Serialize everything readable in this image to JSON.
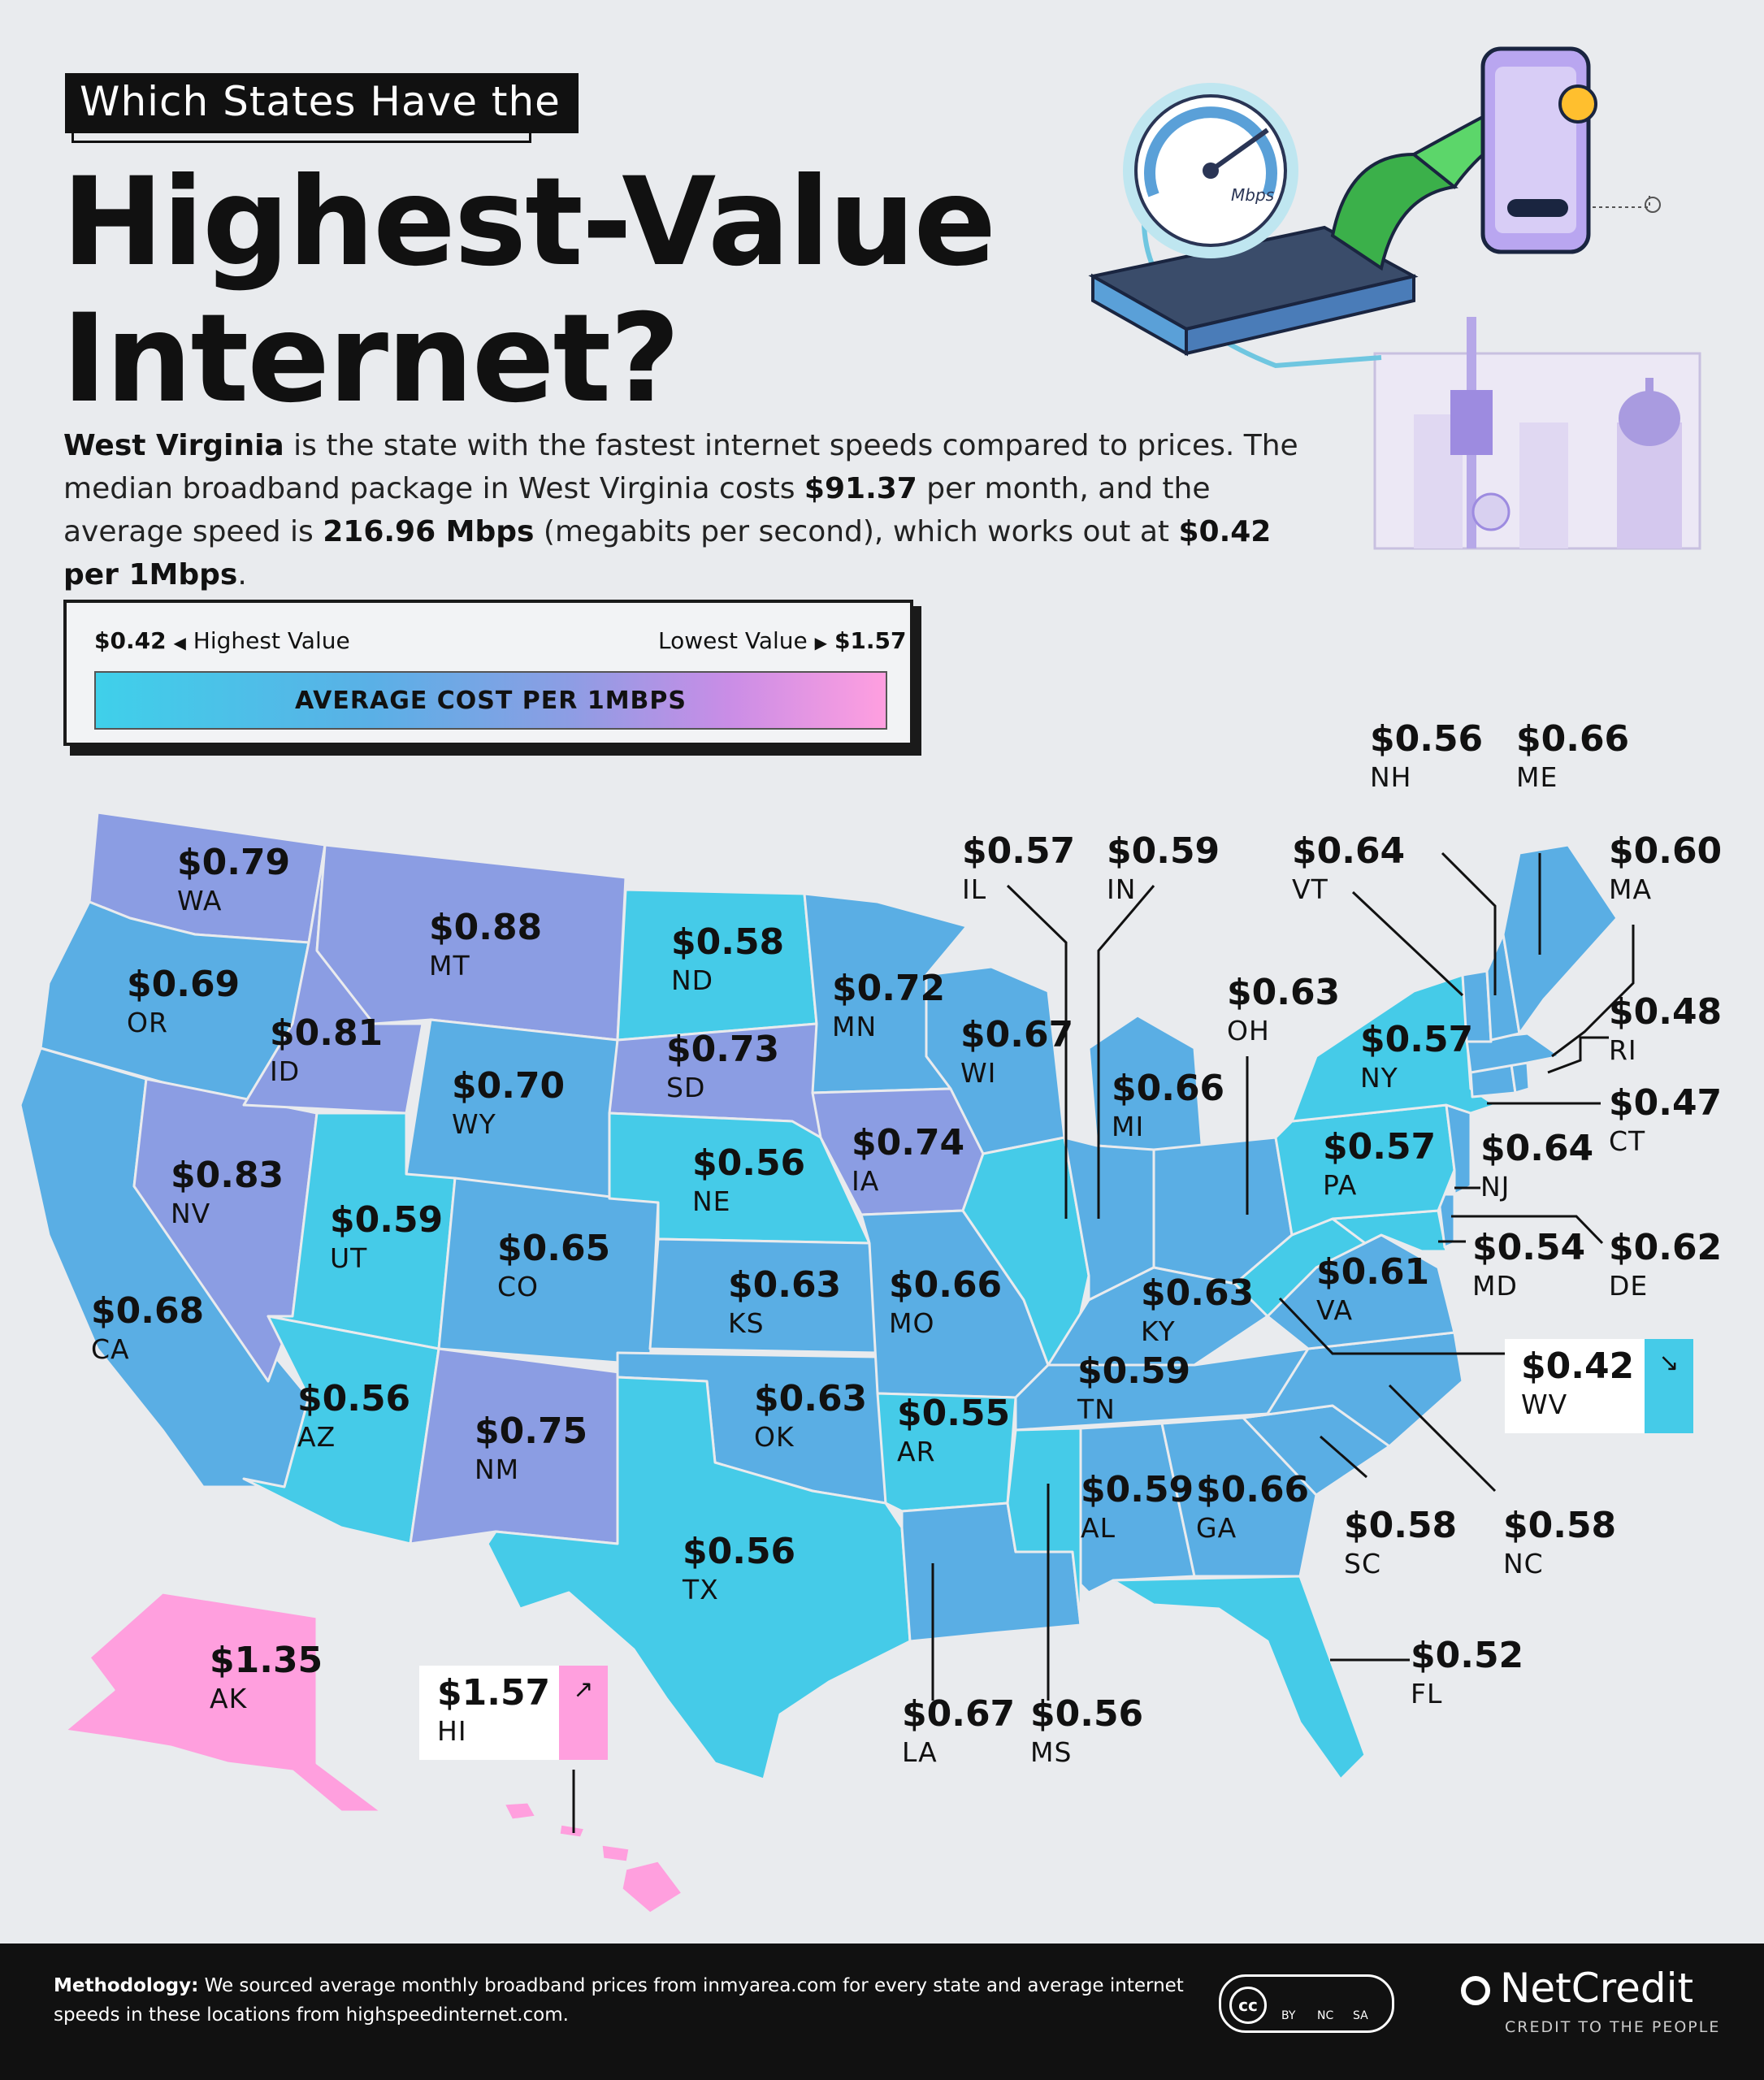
{
  "header": {
    "kicker": "Which States Have the",
    "title_line1": "Highest-Value",
    "title_line2": "Internet?"
  },
  "intro": {
    "state": "West Virginia",
    "t1": " is the state with the fastest internet speeds compared to prices. The median broadband package in West Virginia costs ",
    "cost": "$91.37",
    "t2": " per month, and the average speed is ",
    "speed": "216.96 Mbps",
    "t3": " (megabits per second), which works out at ",
    "per": "$0.42 per 1Mbps",
    "t4": "."
  },
  "illustration": {
    "gauge_label": "Mbps"
  },
  "legend": {
    "min_value": "$0.42",
    "min_label": "Highest Value",
    "max_label": "Lowest Value",
    "max_value": "$1.57",
    "bar_label": "AVERAGE COST PER 1MBPS",
    "color_low": "#3fd0ea",
    "color_high": "#ff9fe0"
  },
  "states": {
    "WA": {
      "abbr": "WA",
      "value": "$0.79"
    },
    "OR": {
      "abbr": "OR",
      "value": "$0.69"
    },
    "CA": {
      "abbr": "CA",
      "value": "$0.68"
    },
    "NV": {
      "abbr": "NV",
      "value": "$0.83"
    },
    "ID": {
      "abbr": "ID",
      "value": "$0.81"
    },
    "MT": {
      "abbr": "MT",
      "value": "$0.88"
    },
    "WY": {
      "abbr": "WY",
      "value": "$0.70"
    },
    "UT": {
      "abbr": "UT",
      "value": "$0.59"
    },
    "AZ": {
      "abbr": "AZ",
      "value": "$0.56"
    },
    "CO": {
      "abbr": "CO",
      "value": "$0.65"
    },
    "NM": {
      "abbr": "NM",
      "value": "$0.75"
    },
    "ND": {
      "abbr": "ND",
      "value": "$0.58"
    },
    "SD": {
      "abbr": "SD",
      "value": "$0.73"
    },
    "NE": {
      "abbr": "NE",
      "value": "$0.56"
    },
    "KS": {
      "abbr": "KS",
      "value": "$0.63"
    },
    "OK": {
      "abbr": "OK",
      "value": "$0.63"
    },
    "TX": {
      "abbr": "TX",
      "value": "$0.56"
    },
    "MN": {
      "abbr": "MN",
      "value": "$0.72"
    },
    "IA": {
      "abbr": "IA",
      "value": "$0.74"
    },
    "MO": {
      "abbr": "MO",
      "value": "$0.66"
    },
    "AR": {
      "abbr": "AR",
      "value": "$0.55"
    },
    "LA": {
      "abbr": "LA",
      "value": "$0.67"
    },
    "WI": {
      "abbr": "WI",
      "value": "$0.67"
    },
    "IL": {
      "abbr": "IL",
      "value": "$0.57"
    },
    "MI": {
      "abbr": "MI",
      "value": "$0.66"
    },
    "IN": {
      "abbr": "IN",
      "value": "$0.59"
    },
    "OH": {
      "abbr": "OH",
      "value": "$0.63"
    },
    "KY": {
      "abbr": "KY",
      "value": "$0.63"
    },
    "TN": {
      "abbr": "TN",
      "value": "$0.59"
    },
    "MS": {
      "abbr": "MS",
      "value": "$0.56"
    },
    "AL": {
      "abbr": "AL",
      "value": "$0.59"
    },
    "GA": {
      "abbr": "GA",
      "value": "$0.66"
    },
    "FL": {
      "abbr": "FL",
      "value": "$0.52"
    },
    "SC": {
      "abbr": "SC",
      "value": "$0.58"
    },
    "NC": {
      "abbr": "NC",
      "value": "$0.58"
    },
    "VA": {
      "abbr": "VA",
      "value": "$0.61"
    },
    "WV": {
      "abbr": "WV",
      "value": "$0.42"
    },
    "MD": {
      "abbr": "MD",
      "value": "$0.54"
    },
    "DE": {
      "abbr": "DE",
      "value": "$0.62"
    },
    "PA": {
      "abbr": "PA",
      "value": "$0.57"
    },
    "NJ": {
      "abbr": "NJ",
      "value": "$0.64"
    },
    "NY": {
      "abbr": "NY",
      "value": "$0.57"
    },
    "CT": {
      "abbr": "CT",
      "value": "$0.47"
    },
    "RI": {
      "abbr": "RI",
      "value": "$0.48"
    },
    "MA": {
      "abbr": "MA",
      "value": "$0.60"
    },
    "VT": {
      "abbr": "VT",
      "value": "$0.64"
    },
    "NH": {
      "abbr": "NH",
      "value": "$0.56"
    },
    "ME": {
      "abbr": "ME",
      "value": "$0.66"
    },
    "AK": {
      "abbr": "AK",
      "value": "$1.35"
    },
    "HI": {
      "abbr": "HI",
      "value": "$1.57"
    }
  },
  "footer": {
    "method_label": "Methodology:",
    "method_text": " We sourced average monthly broadband prices from inmyarea.com for every state and average internet speeds in these locations from highspeedinternet.com.",
    "license_mark": "cc",
    "license_by": "BY",
    "license_nc": "NC",
    "license_sa": "SA",
    "brand": "NetCredit",
    "tagline": "CREDIT TO THE PEOPLE"
  }
}
